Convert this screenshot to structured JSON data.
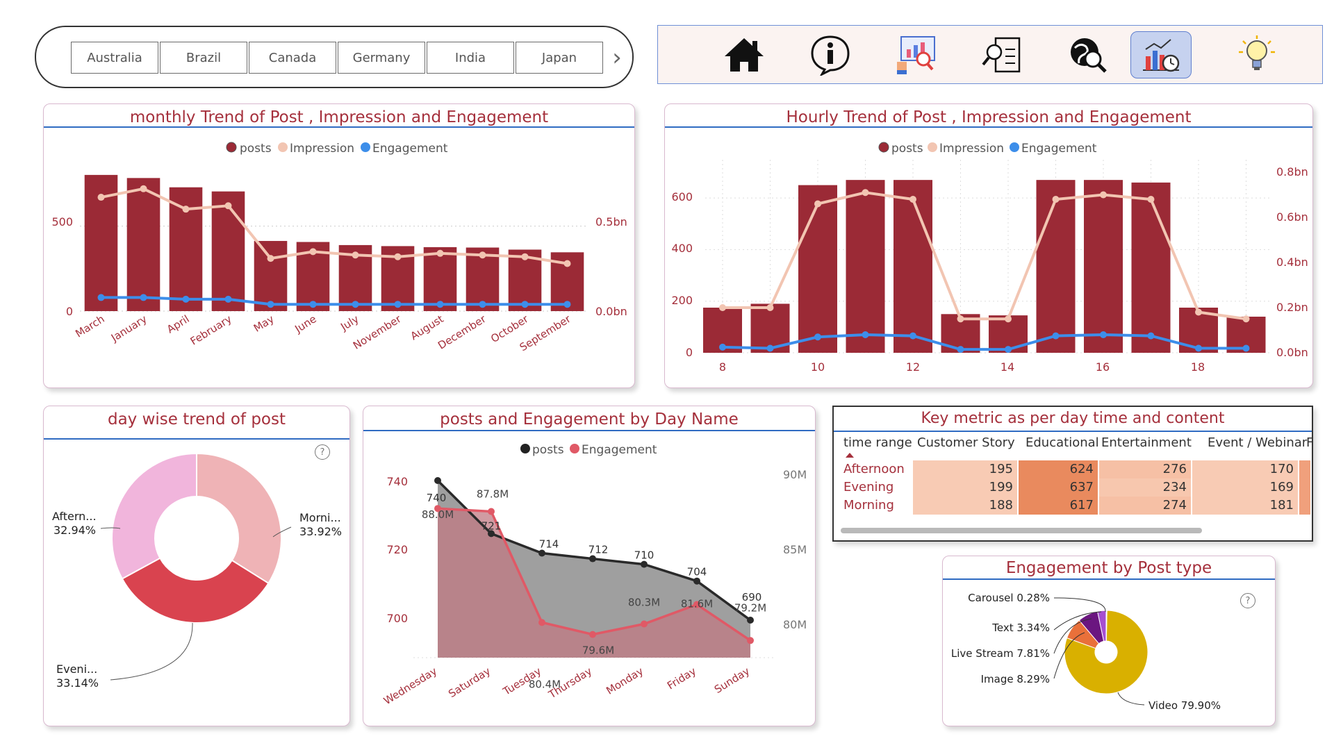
{
  "slicer": {
    "countries": [
      "Australia",
      "Brazil",
      "Canada",
      "Germany",
      "India",
      "Japan"
    ],
    "next_icon": "chevron-right-icon"
  },
  "nav": {
    "icons": [
      "home-icon",
      "info-icon",
      "presentation-analysis-icon",
      "document-search-icon",
      "global-search-icon",
      "chart-analytics-icon",
      "idea-bulb-icon"
    ],
    "active": "chart-analytics-icon"
  },
  "colors": {
    "posts": "#9b2a36",
    "impression": "#f2c5b2",
    "engagement": "#3d8eea",
    "title": "#a5303c",
    "accent": "#2f6bc2"
  },
  "monthly": {
    "title": "monthly Trend of Post , Impression and Engagement",
    "legend": [
      "posts",
      "Impression",
      "Engagement"
    ],
    "y_left_ticks": [
      "0",
      "500"
    ],
    "y_right_ticks": [
      "0.0bn",
      "0.5bn"
    ]
  },
  "hourly": {
    "title": "Hourly Trend of Post , Impression and Engagement",
    "legend": [
      "posts",
      "Impression",
      "Engagement"
    ],
    "y_left_ticks": [
      "0",
      "200",
      "400",
      "600"
    ],
    "y_right_ticks": [
      "0.0bn",
      "0.2bn",
      "0.4bn",
      "0.6bn",
      "0.8bn"
    ],
    "x_ticks": [
      "8",
      "10",
      "12",
      "14",
      "16",
      "18"
    ]
  },
  "daywise": {
    "title": "day wise trend of post",
    "help": "?"
  },
  "dayname": {
    "title": "posts and Engagement by Day Name",
    "legend": [
      "posts",
      "Engagement"
    ],
    "y_left_ticks": [
      "700",
      "720",
      "740"
    ],
    "y_right_ticks": [
      "80M",
      "85M",
      "90M"
    ]
  },
  "key_metric": {
    "title": "Key metric as per day time and content",
    "columns": [
      "time range",
      "Customer Story",
      "Educational",
      "Entertainment",
      "Event / Webinar",
      "F"
    ],
    "rows": [
      {
        "label": "Afternoon",
        "values": [
          "195",
          "624",
          "276",
          "170"
        ]
      },
      {
        "label": "Evening",
        "values": [
          "199",
          "637",
          "234",
          "169"
        ]
      },
      {
        "label": "Morning",
        "values": [
          "188",
          "617",
          "274",
          "181"
        ]
      }
    ]
  },
  "post_type": {
    "title": "Engagement by Post type",
    "help": "?"
  },
  "chart_data": [
    {
      "type": "bar",
      "title": "monthly Trend of Post , Impression and Engagement",
      "categories": [
        "March",
        "January",
        "April",
        "February",
        "May",
        "June",
        "July",
        "November",
        "August",
        "December",
        "October",
        "September"
      ],
      "series": [
        {
          "name": "posts",
          "type": "bar",
          "axis": "left",
          "values": [
            660,
            645,
            600,
            580,
            340,
            335,
            320,
            315,
            310,
            308,
            298,
            285
          ]
        },
        {
          "name": "Impression",
          "type": "line",
          "axis": "right",
          "values": [
            0.67,
            0.72,
            0.6,
            0.62,
            0.31,
            0.35,
            0.33,
            0.32,
            0.34,
            0.33,
            0.32,
            0.28
          ]
        },
        {
          "name": "Engagement",
          "type": "line",
          "axis": "right",
          "values": [
            0.08,
            0.08,
            0.07,
            0.07,
            0.04,
            0.04,
            0.04,
            0.04,
            0.04,
            0.04,
            0.04,
            0.04
          ]
        }
      ],
      "ylim_left": [
        0,
        700
      ],
      "ylim_right": [
        0,
        0.85
      ]
    },
    {
      "type": "bar",
      "title": "Hourly Trend of Post , Impression and Engagement",
      "x": [
        8,
        9,
        10,
        11,
        12,
        13,
        14,
        15,
        16,
        17,
        18,
        19
      ],
      "series": [
        {
          "name": "posts",
          "type": "bar",
          "axis": "left",
          "values": [
            175,
            190,
            650,
            670,
            670,
            150,
            145,
            670,
            670,
            660,
            175,
            140
          ]
        },
        {
          "name": "Impression",
          "type": "line",
          "axis": "right",
          "values": [
            0.2,
            0.2,
            0.66,
            0.71,
            0.68,
            0.15,
            0.15,
            0.68,
            0.7,
            0.68,
            0.18,
            0.15
          ]
        },
        {
          "name": "Engagement",
          "type": "line",
          "axis": "right",
          "values": [
            0.025,
            0.02,
            0.07,
            0.08,
            0.075,
            0.015,
            0.015,
            0.075,
            0.08,
            0.075,
            0.02,
            0.02
          ]
        }
      ],
      "ylim_left": [
        0,
        700
      ],
      "ylim_right": [
        0,
        0.8
      ]
    },
    {
      "type": "pie",
      "title": "day wise trend of post",
      "labels": [
        "Morni...",
        "Eveni...",
        "Aftern..."
      ],
      "values": [
        33.92,
        33.14,
        32.94
      ],
      "value_labels": [
        "33.92%",
        "33.14%",
        "32.94%"
      ],
      "colors": [
        "#efb3b6",
        "#d9434f",
        "#f1b5dc"
      ]
    },
    {
      "type": "area",
      "title": "posts and Engagement by Day Name",
      "categories": [
        "Wednesday",
        "Saturday",
        "Tuesday",
        "Thursday",
        "Monday",
        "Friday",
        "Sunday"
      ],
      "series": [
        {
          "name": "posts",
          "axis": "left",
          "values": [
            740,
            721,
            714,
            712,
            710,
            704,
            690
          ],
          "labels": [
            "740",
            "721",
            "714",
            "712",
            "710",
            "704",
            "690"
          ]
        },
        {
          "name": "Engagement",
          "axis": "right",
          "values": [
            88.0,
            87.8,
            80.4,
            79.6,
            80.3,
            81.6,
            79.2
          ],
          "labels": [
            "88.0M",
            "87.8M",
            "80.4M",
            "79.6M",
            "80.3M",
            "81.6M",
            "79.2M"
          ]
        }
      ],
      "ylim_left": [
        692,
        740
      ],
      "ylim_right": [
        78,
        90
      ]
    },
    {
      "type": "pie",
      "title": "Engagement by Post type",
      "labels": [
        "Video",
        "Image",
        "Live Stream",
        "Text",
        "Carousel"
      ],
      "values": [
        79.9,
        8.29,
        7.81,
        3.34,
        0.28
      ],
      "value_labels": [
        "Video 79.90%",
        "Image 8.29%",
        "Live Stream 7.81%",
        "Text 3.34%",
        "Carousel 0.28%"
      ],
      "colors": [
        "#d9b000",
        "#e9703a",
        "#6b1680",
        "#a64fd1",
        "#2f4fb0"
      ]
    }
  ]
}
